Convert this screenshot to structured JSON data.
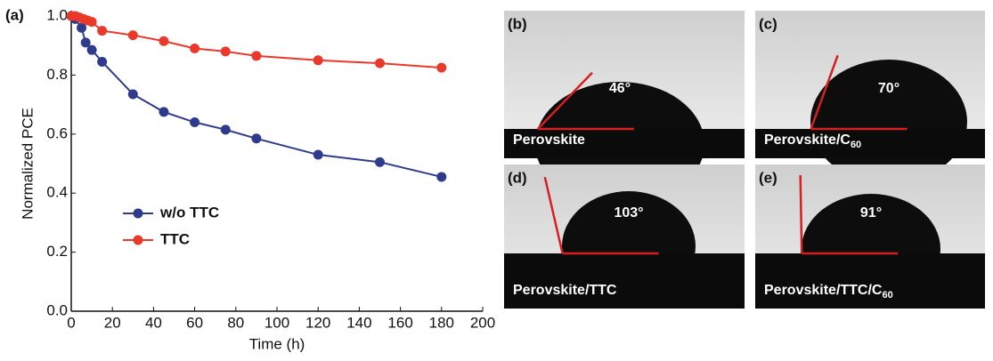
{
  "chart_data": {
    "type": "line",
    "panel_label": "(a)",
    "xlabel": "Time (h)",
    "ylabel": "Normalized PCE",
    "xlim": [
      0,
      200
    ],
    "xticks": [
      0,
      20,
      40,
      60,
      80,
      100,
      120,
      140,
      160,
      180,
      200
    ],
    "ylim": [
      0,
      1.0
    ],
    "yticks": [
      {
        "value": 0,
        "label": "0.0"
      },
      0.2,
      0.4,
      0.6,
      0.8,
      {
        "value": 1.0,
        "label": "1.0"
      }
    ],
    "legend": "center-left",
    "series": [
      {
        "name": "w/o TTC",
        "color": "#2e3b8c",
        "x": [
          0,
          2,
          5,
          7,
          10,
          15,
          30,
          45,
          60,
          75,
          90,
          120,
          150,
          180
        ],
        "values": [
          1.0,
          0.99,
          0.96,
          0.91,
          0.885,
          0.845,
          0.735,
          0.675,
          0.64,
          0.615,
          0.585,
          0.53,
          0.505,
          0.455
        ]
      },
      {
        "name": "TTC",
        "color": "#e8392b",
        "x": [
          0,
          2,
          4,
          6,
          8,
          10,
          15,
          30,
          45,
          60,
          75,
          90,
          120,
          150,
          180
        ],
        "values": [
          1.0,
          1.0,
          0.995,
          0.99,
          0.985,
          0.98,
          0.95,
          0.935,
          0.915,
          0.89,
          0.88,
          0.865,
          0.85,
          0.84,
          0.825
        ]
      }
    ]
  },
  "images": [
    {
      "label": "(b)",
      "angle": {
        "value": 46,
        "label": "46°"
      },
      "caption": "Perovskite"
    },
    {
      "label": "(c)",
      "angle": {
        "value": 70,
        "label": "70°"
      },
      "caption": "Perovskite/C",
      "caption_sub": "60"
    },
    {
      "label": "(d)",
      "angle": {
        "value": 103,
        "label": "103°"
      },
      "caption": "Perovskite/TTC"
    },
    {
      "label": "(e)",
      "angle": {
        "value": 91,
        "label": "91°"
      },
      "caption": "Perovskite/TTC/C",
      "caption_sub": "60"
    }
  ]
}
